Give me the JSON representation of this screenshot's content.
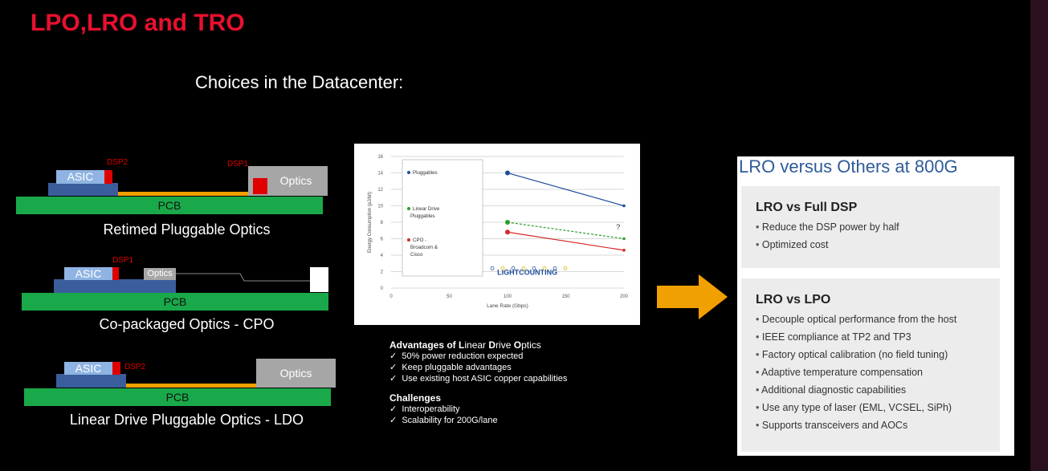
{
  "title": "LPO,LRO and TRO",
  "subtitle": "Choices in the Datacenter:",
  "diagrams": {
    "retimed": {
      "asic": "ASIC",
      "dsp2": "DSP2",
      "dsp1": "DSP1",
      "optics": "Optics",
      "pcb": "PCB",
      "caption": "Retimed Pluggable Optics"
    },
    "cpo": {
      "asic": "ASIC",
      "dsp1": "DSP1",
      "optics": "Optics",
      "pcb": "PCB",
      "caption": "Co-packaged Optics - CPO"
    },
    "ldo": {
      "asic": "ASIC",
      "dsp2": "DSP2",
      "optics": "Optics",
      "pcb": "PCB",
      "caption": "Linear Drive Pluggable Optics - LDO"
    }
  },
  "colors": {
    "title": "#e8102e",
    "pcb": "#1aa94a",
    "asic": "#8fb4e3",
    "dsp": "#e00000",
    "optics": "#a6a6a6",
    "trace": "#f0a000",
    "arrow": "#f0a000"
  },
  "chart_data": {
    "type": "line",
    "xlabel": "Lane Rate (Gbps)",
    "ylabel": "Energy Consumption (pJ/bit)",
    "xlim": [
      0,
      200
    ],
    "ylim": [
      0,
      16
    ],
    "xticks": [
      0,
      50,
      100,
      150,
      200
    ],
    "yticks": [
      0,
      2,
      4,
      6,
      8,
      10,
      12,
      14,
      16
    ],
    "grid": true,
    "legend_placement": "left",
    "series": [
      {
        "name": "Pluggables",
        "color": "#1f4e9c",
        "x": [
          100,
          200
        ],
        "y": [
          14,
          10
        ]
      },
      {
        "name": "Linear Drive Pluggables",
        "color": "#2ca02c",
        "x": [
          100,
          200
        ],
        "y": [
          8,
          6
        ]
      },
      {
        "name": "CPO - Broadcom & Cisco",
        "color": "#d62728",
        "x": [
          100,
          200
        ],
        "y": [
          6.8,
          4.6
        ]
      }
    ],
    "annotation": "?",
    "watermark": "LIGHTCOUNTING"
  },
  "advantages": {
    "heading_parts": [
      "Advantages of ",
      "L",
      "inear ",
      "D",
      "rive ",
      "O",
      "ptics"
    ],
    "items": [
      "50%  power reduction expected",
      "Keep pluggable advantages",
      "Use existing host ASIC copper capabilities"
    ],
    "challenges_heading": "Challenges",
    "challenges": [
      "Interoperability",
      "Scalability for 200G/lane"
    ],
    "check": "✓"
  },
  "lro": {
    "title": "LRO versus Others at 800G",
    "box1": {
      "heading": "LRO vs Full DSP",
      "items": [
        "Reduce the DSP power by half",
        "Optimized cost"
      ]
    },
    "box2": {
      "heading": "LRO vs LPO",
      "items": [
        "Decouple optical performance from the host",
        "IEEE compliance at TP2 and TP3",
        "Factory optical calibration (no field tuning)",
        "Adaptive temperature compensation",
        "Additional diagnostic capabilities",
        "Use any type of laser (EML, VCSEL, SiPh)",
        "Supports transceivers and AOCs"
      ]
    }
  }
}
